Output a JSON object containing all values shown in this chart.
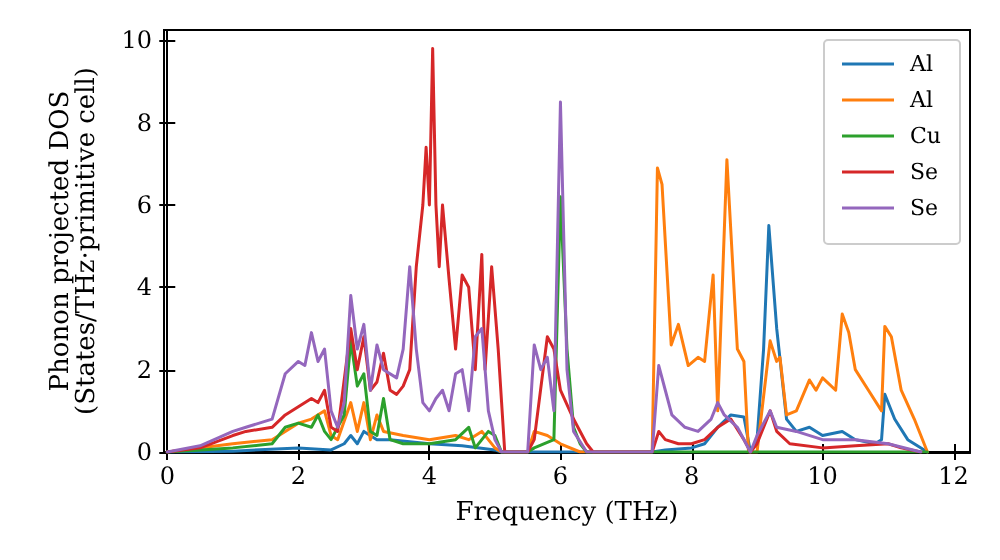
{
  "chart_data": {
    "type": "line",
    "xlabel": "Frequency (THz)",
    "ylabel": "Phonon projected DOS\n(States/THz·primitive cell)",
    "xlim": [
      -0.05,
      12.25
    ],
    "ylim": [
      0,
      10.25
    ],
    "xticks": [
      0,
      2,
      4,
      6,
      8,
      10,
      12
    ],
    "yticks": [
      0,
      2,
      4,
      6,
      8,
      10
    ],
    "grid": false,
    "legend": "top right",
    "marker": "none",
    "line_style": "solid",
    "series": [
      {
        "name": "Al",
        "color": "#1f77b4",
        "x": [
          0,
          1,
          2,
          2.5,
          2.7,
          2.8,
          2.9,
          3.0,
          3.2,
          3.4,
          4,
          4.5,
          5.0,
          5.1,
          7.4,
          7.6,
          8.0,
          8.2,
          8.4,
          8.6,
          8.8,
          8.9,
          9.0,
          9.1,
          9.18,
          9.3,
          9.45,
          9.6,
          9.8,
          10.0,
          10.3,
          10.5,
          10.8,
          10.9,
          10.95,
          11.1,
          11.3,
          11.6
        ],
        "values": [
          0,
          0.02,
          0.1,
          0.05,
          0.2,
          0.4,
          0.2,
          0.5,
          0.3,
          0.3,
          0.2,
          0.15,
          0.05,
          0,
          0,
          0.05,
          0.1,
          0.2,
          0.6,
          0.9,
          0.85,
          0,
          0.3,
          2.5,
          5.5,
          3.0,
          0.8,
          0.5,
          0.6,
          0.4,
          0.5,
          0.3,
          0.2,
          0.3,
          1.4,
          0.8,
          0.3,
          0
        ]
      },
      {
        "name": "Al",
        "color": "#ff7f0e",
        "x": [
          0,
          1,
          1.6,
          2.0,
          2.2,
          2.4,
          2.5,
          2.6,
          2.8,
          2.9,
          3.0,
          3.1,
          3.2,
          3.3,
          3.6,
          4.0,
          4.4,
          4.6,
          4.8,
          5.0,
          5.1,
          5.5,
          5.6,
          5.8,
          6.0,
          6.3,
          7.4,
          7.48,
          7.55,
          7.69,
          7.8,
          7.95,
          8.1,
          8.2,
          8.33,
          8.4,
          8.54,
          8.7,
          8.8,
          8.87,
          9.0,
          9.2,
          9.3,
          9.35,
          9.45,
          9.6,
          9.8,
          9.9,
          10.0,
          10.2,
          10.3,
          10.4,
          10.5,
          10.7,
          10.9,
          10.95,
          11.05,
          11.2,
          11.4,
          11.6
        ],
        "values": [
          0,
          0.2,
          0.3,
          0.7,
          0.8,
          1.0,
          0.4,
          0.3,
          1.2,
          0.5,
          1.2,
          0.3,
          0.9,
          0.5,
          0.4,
          0.3,
          0.4,
          0.3,
          0.5,
          0.1,
          0,
          0,
          0.5,
          0.4,
          0.2,
          0,
          0,
          6.9,
          6.5,
          2.6,
          3.1,
          2.1,
          2.3,
          2.2,
          4.3,
          1.0,
          7.1,
          2.5,
          2.2,
          0,
          0,
          2.7,
          2.2,
          2.3,
          0.9,
          1.0,
          1.75,
          1.5,
          1.8,
          1.5,
          3.35,
          2.9,
          2.0,
          1.5,
          1.0,
          3.05,
          2.8,
          1.5,
          0.8,
          0
        ]
      },
      {
        "name": "Cu",
        "color": "#2ca02c",
        "x": [
          0,
          1,
          1.6,
          1.8,
          2.0,
          2.2,
          2.3,
          2.4,
          2.5,
          2.7,
          2.8,
          2.9,
          3.0,
          3.1,
          3.2,
          3.3,
          3.4,
          3.6,
          4.0,
          4.4,
          4.6,
          4.7,
          4.8,
          4.9,
          5.0,
          5.1,
          5.5,
          5.6,
          5.9,
          6.0,
          6.1,
          6.2,
          6.3,
          6.4,
          11.6
        ],
        "values": [
          0,
          0.1,
          0.2,
          0.6,
          0.7,
          0.6,
          0.9,
          0.5,
          0.3,
          0.9,
          2.7,
          1.6,
          1.9,
          0.5,
          0.4,
          1.3,
          0.3,
          0.2,
          0.2,
          0.3,
          0.6,
          0.1,
          0.3,
          0.5,
          0.4,
          0,
          0,
          0.1,
          0.3,
          6.2,
          2.5,
          0.6,
          0.2,
          0,
          0
        ]
      },
      {
        "name": "Se",
        "color": "#d62728",
        "x": [
          0,
          0.5,
          1,
          1.2,
          1.6,
          1.8,
          2.0,
          2.2,
          2.3,
          2.4,
          2.5,
          2.6,
          2.8,
          2.9,
          3.0,
          3.1,
          3.2,
          3.3,
          3.4,
          3.5,
          3.6,
          3.7,
          3.8,
          3.9,
          3.95,
          4.0,
          4.05,
          4.1,
          4.15,
          4.2,
          4.3,
          4.4,
          4.5,
          4.6,
          4.7,
          4.8,
          4.85,
          4.95,
          5.05,
          5.15,
          5.5,
          5.6,
          5.8,
          5.9,
          6.0,
          6.2,
          6.4,
          6.5,
          7.4,
          7.5,
          7.6,
          7.8,
          8.0,
          8.2,
          8.4,
          8.6,
          8.8,
          8.9,
          9.0,
          9.2,
          9.3,
          9.5,
          10,
          10.5,
          11,
          11.2,
          11.5
        ],
        "values": [
          0,
          0.1,
          0.4,
          0.5,
          0.6,
          0.9,
          1.1,
          1.3,
          1.2,
          1.5,
          0.6,
          0.5,
          3.0,
          2.0,
          2.8,
          1.5,
          1.7,
          2.4,
          1.5,
          1.4,
          1.6,
          2.0,
          4.5,
          6.0,
          7.4,
          6.0,
          9.8,
          6.0,
          4.5,
          6.0,
          4.2,
          2.5,
          4.3,
          4.0,
          2.0,
          4.8,
          2.0,
          4.5,
          2.5,
          0,
          0,
          0.3,
          2.8,
          2.5,
          1.5,
          0.8,
          0.2,
          0,
          0,
          0.5,
          0.3,
          0.2,
          0.2,
          0.3,
          0.6,
          0.8,
          0.3,
          0,
          0.2,
          1.0,
          0.5,
          0.2,
          0.1,
          0.15,
          0.2,
          0.1,
          0
        ]
      },
      {
        "name": "Se",
        "color": "#9467bd",
        "x": [
          0,
          0.5,
          1.0,
          1.2,
          1.6,
          1.8,
          2.0,
          2.1,
          2.2,
          2.3,
          2.4,
          2.5,
          2.6,
          2.7,
          2.8,
          2.9,
          3.0,
          3.1,
          3.2,
          3.3,
          3.5,
          3.6,
          3.7,
          3.8,
          3.9,
          4.0,
          4.1,
          4.2,
          4.3,
          4.4,
          4.5,
          4.6,
          4.7,
          4.8,
          4.9,
          5.0,
          5.1,
          5.5,
          5.6,
          5.7,
          5.8,
          5.9,
          6.0,
          6.1,
          6.2,
          6.4,
          7.4,
          7.5,
          7.6,
          7.7,
          7.9,
          8.1,
          8.3,
          8.4,
          8.5,
          8.7,
          8.9,
          9.0,
          9.2,
          9.3,
          9.6,
          10,
          10.5,
          11,
          11.5
        ],
        "values": [
          0,
          0.15,
          0.5,
          0.6,
          0.8,
          1.9,
          2.2,
          2.1,
          2.9,
          2.2,
          2.5,
          1.0,
          0.6,
          1.2,
          3.8,
          2.5,
          3.1,
          1.5,
          2.6,
          2.0,
          1.8,
          2.5,
          4.5,
          2.5,
          1.2,
          1.0,
          1.3,
          1.5,
          1.0,
          1.9,
          2.0,
          1.0,
          2.8,
          3.0,
          1.0,
          0.3,
          0,
          0,
          2.6,
          2.0,
          2.3,
          1.0,
          8.5,
          2.0,
          0.5,
          0,
          0,
          2.1,
          1.5,
          0.9,
          0.6,
          0.5,
          0.8,
          1.2,
          0.9,
          0.6,
          0,
          0.4,
          1.0,
          0.6,
          0.5,
          0.3,
          0.3,
          0.2,
          0
        ]
      }
    ]
  }
}
